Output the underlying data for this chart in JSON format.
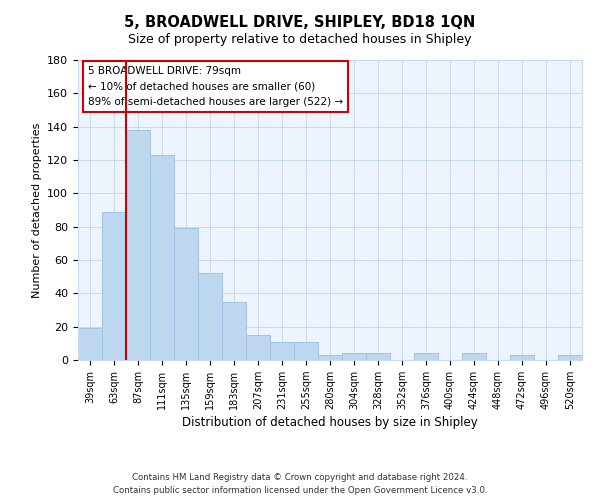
{
  "title": "5, BROADWELL DRIVE, SHIPLEY, BD18 1QN",
  "subtitle": "Size of property relative to detached houses in Shipley",
  "xlabel": "Distribution of detached houses by size in Shipley",
  "ylabel": "Number of detached properties",
  "bar_labels": [
    "39sqm",
    "63sqm",
    "87sqm",
    "111sqm",
    "135sqm",
    "159sqm",
    "183sqm",
    "207sqm",
    "231sqm",
    "255sqm",
    "280sqm",
    "304sqm",
    "328sqm",
    "352sqm",
    "376sqm",
    "400sqm",
    "424sqm",
    "448sqm",
    "472sqm",
    "496sqm",
    "520sqm"
  ],
  "bar_values": [
    19,
    89,
    138,
    123,
    79,
    52,
    35,
    15,
    11,
    11,
    3,
    4,
    4,
    0,
    4,
    0,
    4,
    0,
    3,
    0,
    3
  ],
  "bar_color": "#bdd7ee",
  "bar_edge_color": "#9dc3e6",
  "ylim": [
    0,
    180
  ],
  "yticks": [
    0,
    20,
    40,
    60,
    80,
    100,
    120,
    140,
    160,
    180
  ],
  "property_line_color": "#cc0000",
  "annotation_title": "5 BROADWELL DRIVE: 79sqm",
  "annotation_line1": "← 10% of detached houses are smaller (60)",
  "annotation_line2": "89% of semi-detached houses are larger (522) →",
  "footer1": "Contains HM Land Registry data © Crown copyright and database right 2024.",
  "footer2": "Contains public sector information licensed under the Open Government Licence v3.0."
}
